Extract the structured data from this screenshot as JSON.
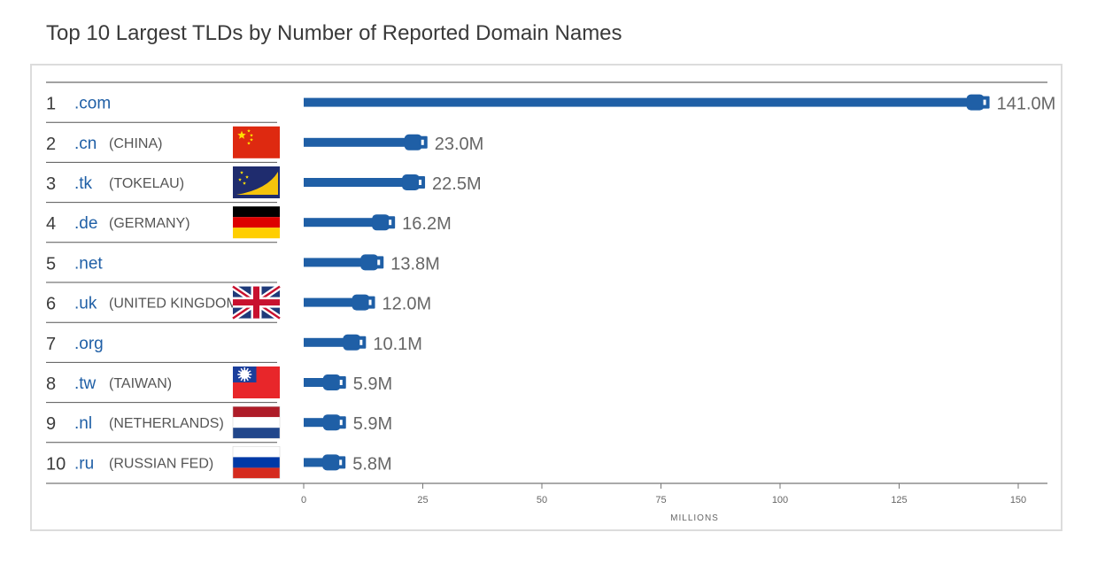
{
  "title": "Top 10 Largest TLDs by Number of Reported Domain Names",
  "chart_data": {
    "type": "bar",
    "orientation": "horizontal",
    "title": "Top 10 Largest TLDs by Number of Reported Domain Names",
    "xlabel": "MILLIONS",
    "xlim": [
      0,
      150
    ],
    "xticks": [
      "0",
      "25",
      "50",
      "75",
      "100",
      "125",
      "150"
    ],
    "rows": [
      {
        "rank": "1",
        "tld": ".com",
        "country": "",
        "flag": "",
        "value": 141.0,
        "label": "141.0M"
      },
      {
        "rank": "2",
        "tld": ".cn",
        "country": "(CHINA)",
        "flag": "china",
        "value": 23.0,
        "label": "23.0M"
      },
      {
        "rank": "3",
        "tld": ".tk",
        "country": "(TOKELAU)",
        "flag": "tokelau",
        "value": 22.5,
        "label": "22.5M"
      },
      {
        "rank": "4",
        "tld": ".de",
        "country": "(GERMANY)",
        "flag": "germany",
        "value": 16.2,
        "label": "16.2M"
      },
      {
        "rank": "5",
        "tld": ".net",
        "country": "",
        "flag": "",
        "value": 13.8,
        "label": "13.8M"
      },
      {
        "rank": "6",
        "tld": ".uk",
        "country": "(UNITED KINGDOM)",
        "flag": "uk",
        "value": 12.0,
        "label": "12.0M"
      },
      {
        "rank": "7",
        "tld": ".org",
        "country": "",
        "flag": "",
        "value": 10.1,
        "label": "10.1M"
      },
      {
        "rank": "8",
        "tld": ".tw",
        "country": "(TAIWAN)",
        "flag": "taiwan",
        "value": 5.9,
        "label": "5.9M"
      },
      {
        "rank": "9",
        "tld": ".nl",
        "country": "(NETHERLANDS)",
        "flag": "netherlands",
        "value": 5.9,
        "label": "5.9M"
      },
      {
        "rank": "10",
        "tld": ".ru",
        "country": "(RUSSIAN FED)",
        "flag": "russia",
        "value": 5.8,
        "label": "5.8M"
      }
    ],
    "bar_color": "#1f5fa6",
    "grid": false
  }
}
